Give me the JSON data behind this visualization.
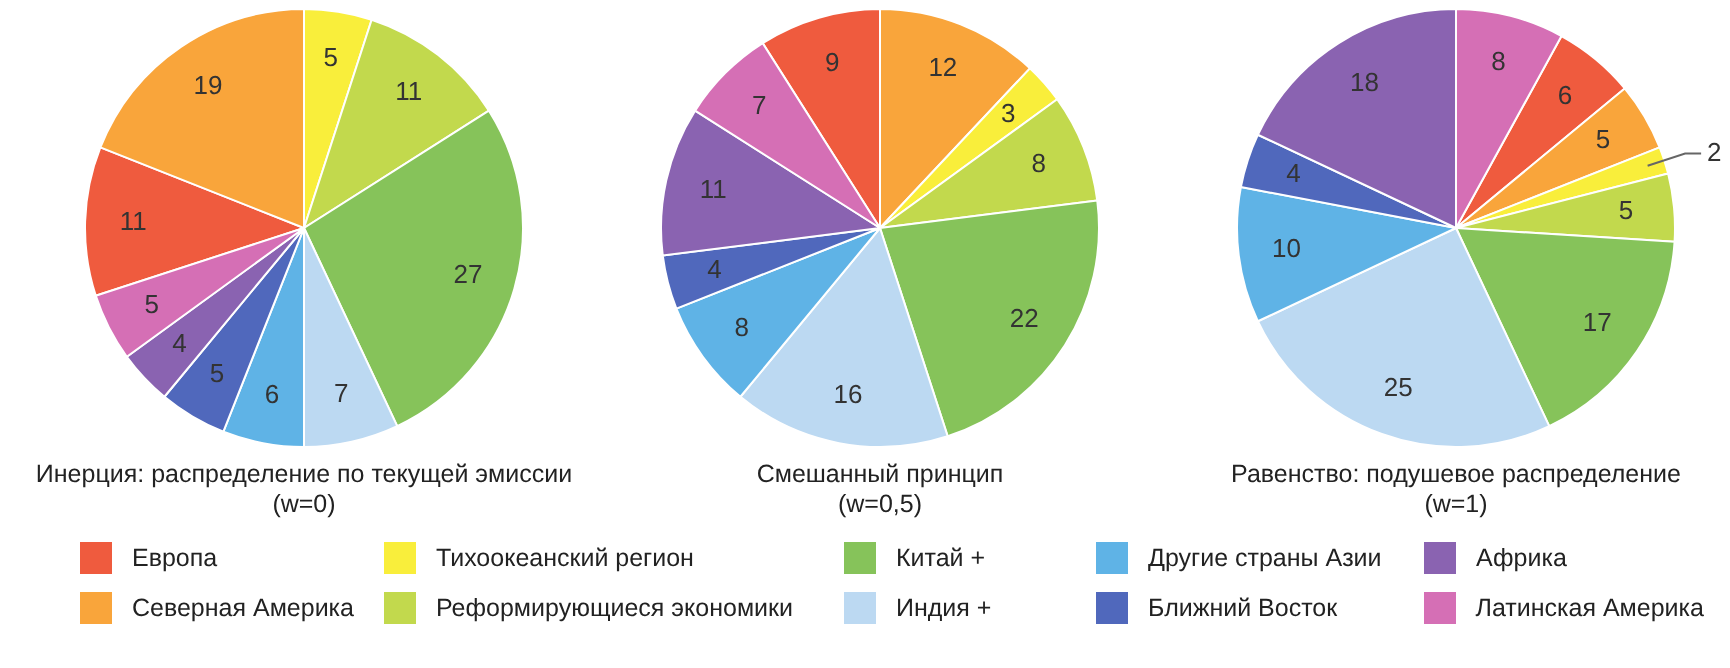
{
  "chart_data": [
    {
      "type": "pie",
      "title": "Инерция: распределение по текущей эмиссии\n(w=0)",
      "categories": [
        "Европа",
        "Северная Америка",
        "Тихоокеанский регион",
        "Реформирующиеся экономики",
        "Китай +",
        "Индия +",
        "Другие страны Азии",
        "Ближний Восток",
        "Африка",
        "Латинская Америка"
      ],
      "values": [
        11,
        19,
        5,
        11,
        27,
        7,
        6,
        5,
        4,
        5
      ],
      "colors": [
        "#ef5b3e",
        "#f9a53b",
        "#f9ee3b",
        "#c2d94d",
        "#86c35a",
        "#bcd9f2",
        "#5fb3e6",
        "#5068bc",
        "#8a63b1",
        "#d56fb5"
      ],
      "data_labels": true,
      "legend": "bottom"
    },
    {
      "type": "pie",
      "title": "Смешанный принцип\n(w=0,5)",
      "values": [
        9,
        12,
        3,
        8,
        22,
        16,
        8,
        4,
        11,
        7
      ],
      "colors": [
        "#ef5b3e",
        "#f9a53b",
        "#f9ee3b",
        "#c2d94d",
        "#86c35a",
        "#bcd9f2",
        "#5fb3e6",
        "#5068bc",
        "#8a63b1",
        "#d56fb5"
      ],
      "data_labels": true
    },
    {
      "type": "pie",
      "title": "Равенство: подушевое распределение\n(w=1)",
      "values": [
        6,
        5,
        2,
        5,
        17,
        25,
        10,
        4,
        18,
        8
      ],
      "colors": [
        "#ef5b3e",
        "#f9a53b",
        "#f9ee3b",
        "#c2d94d",
        "#86c35a",
        "#bcd9f2",
        "#5fb3e6",
        "#5068bc",
        "#8a63b1",
        "#d56fb5"
      ],
      "data_labels": true
    }
  ]
}
